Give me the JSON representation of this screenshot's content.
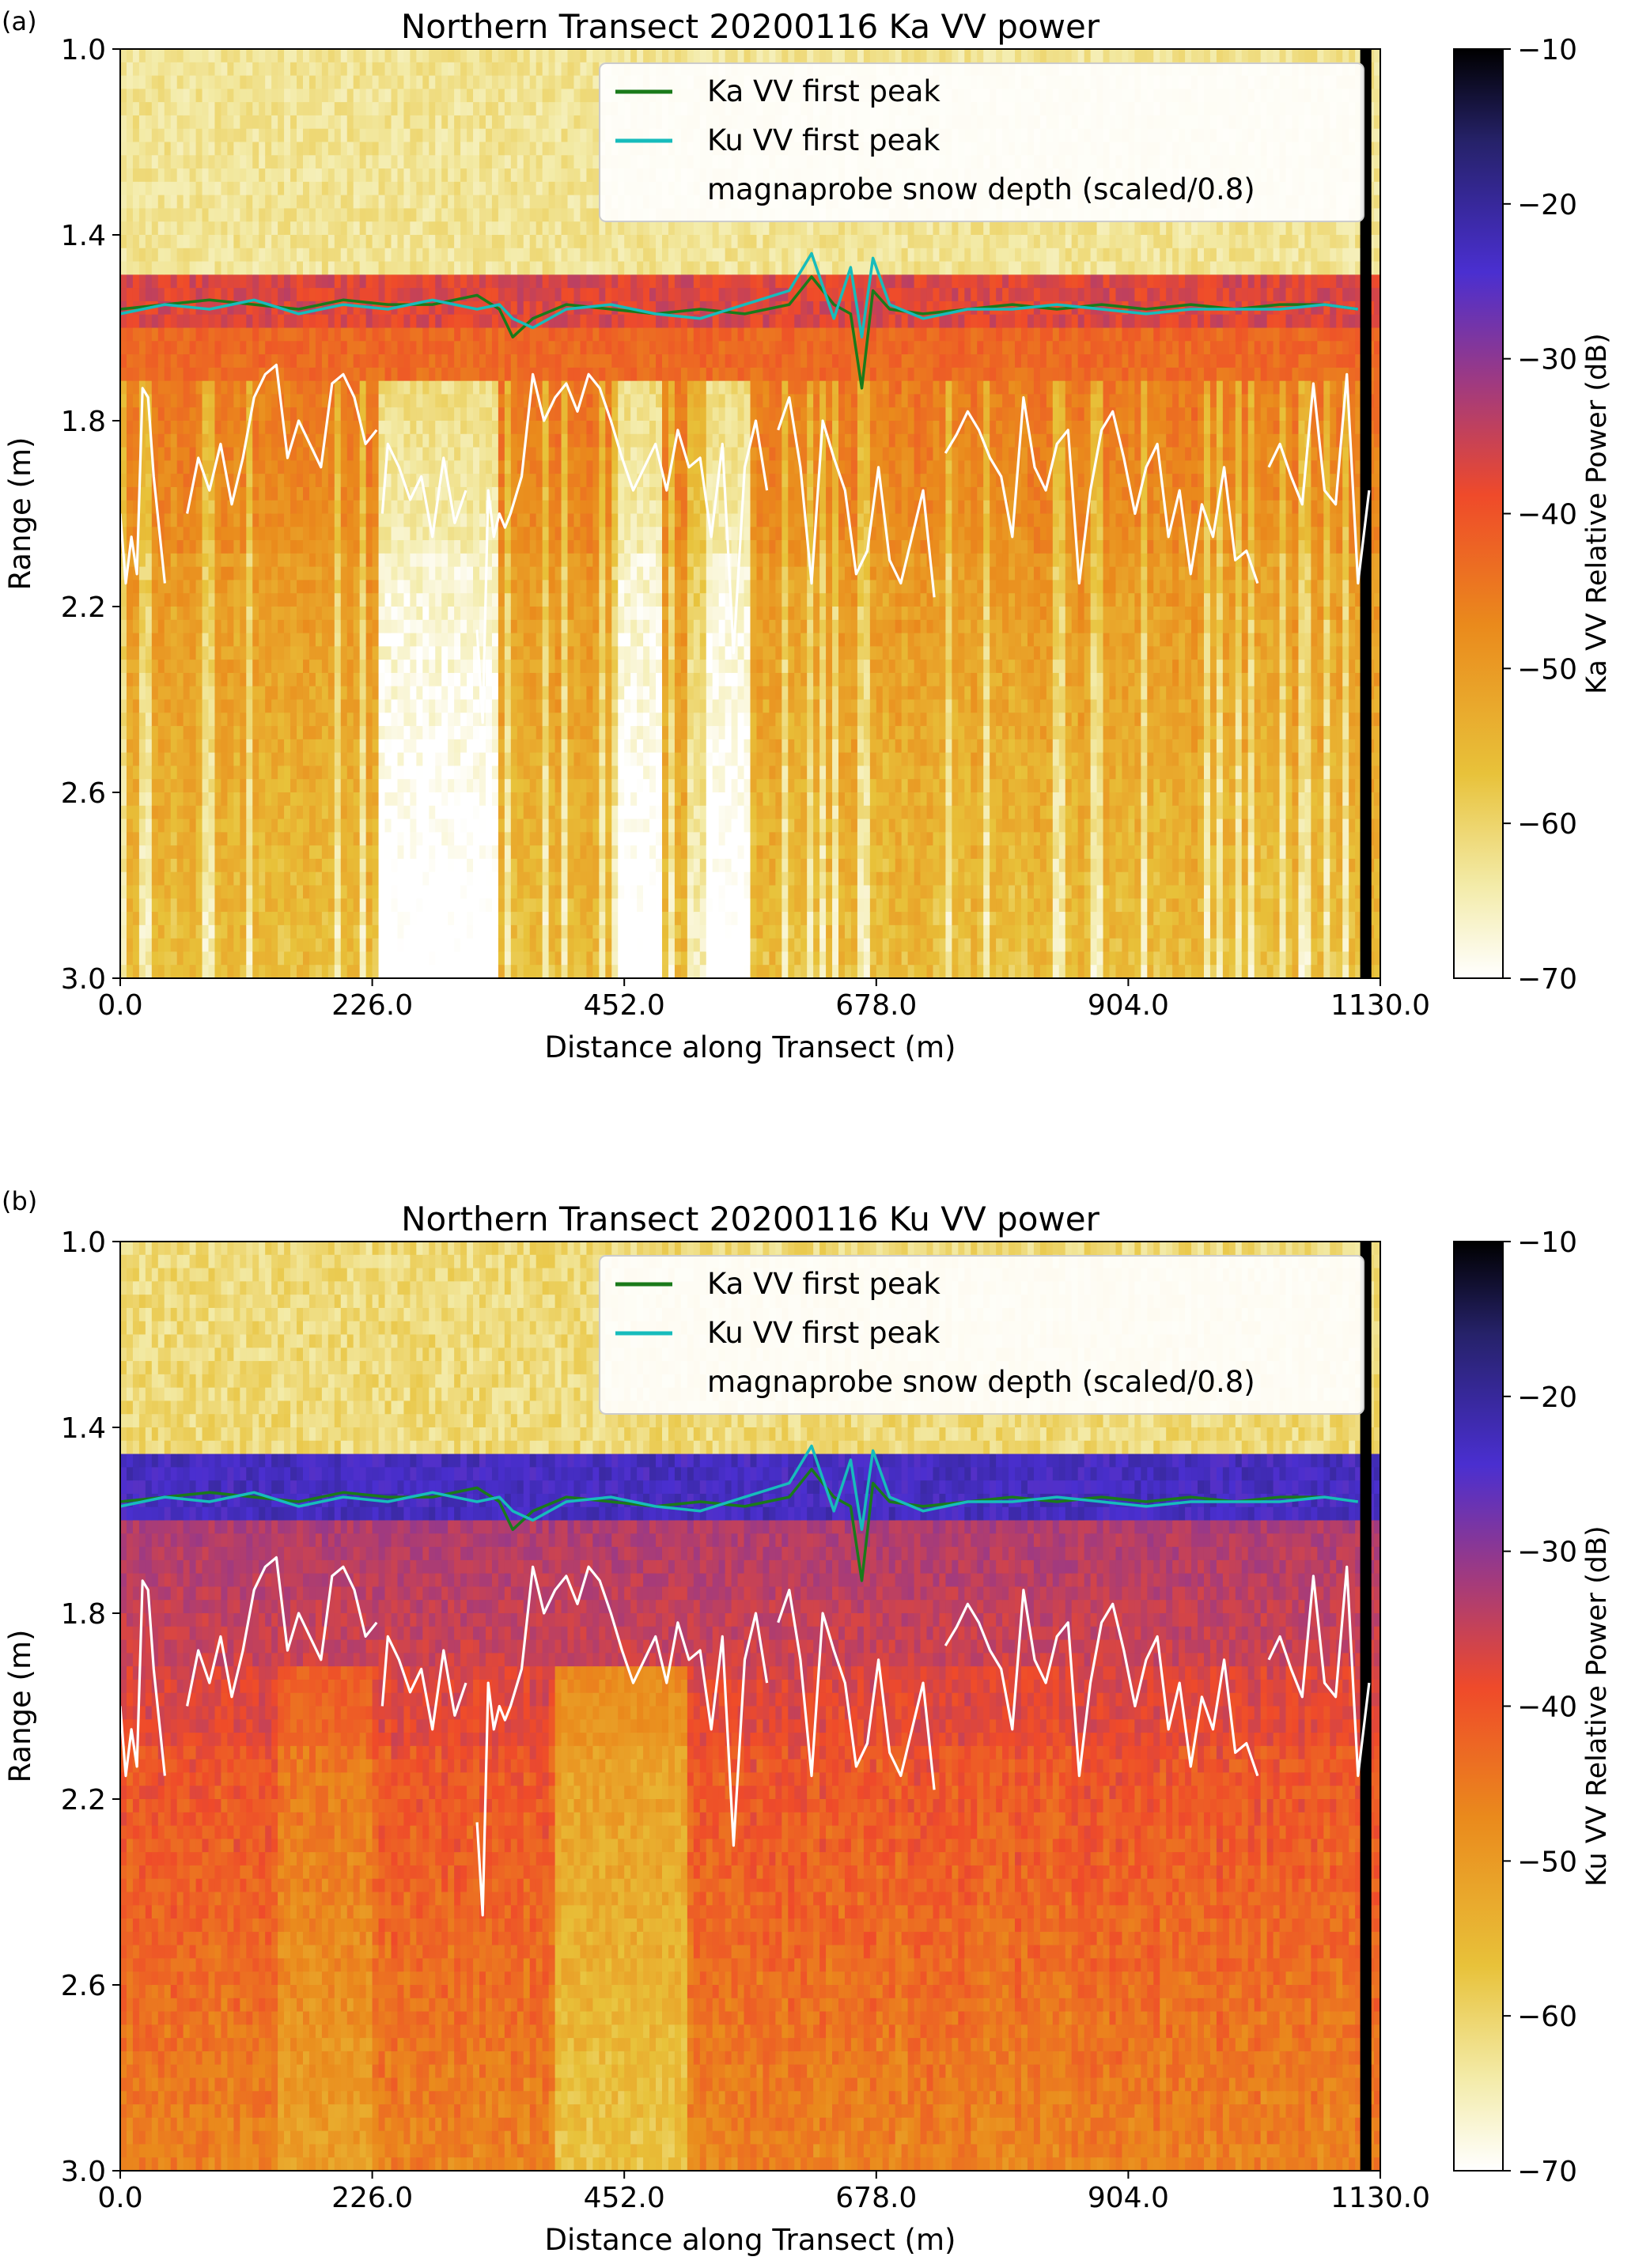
{
  "chart_data": [
    {
      "type": "heatmap",
      "panel_label": "(a)",
      "title": "Northern Transect 20200116 Ka VV power",
      "xlabel": "Distance along Transect (m)",
      "ylabel": "Range (m)",
      "xlim": [
        0,
        1130
      ],
      "ylim": [
        3.0,
        1.0
      ],
      "xticks": [
        "0.0",
        "226.0",
        "452.0",
        "678.0",
        "904.0",
        "1130.0"
      ],
      "yticks": [
        "1.0",
        "1.4",
        "1.8",
        "2.2",
        "2.6",
        "3.0"
      ],
      "colorbar": {
        "label": "Ka VV Relative Power (dB)",
        "range": [
          -70,
          -10
        ],
        "ticks": [
          "−10",
          "−20",
          "−30",
          "−40",
          "−50",
          "−60",
          "−70"
        ],
        "colormap": "CMRmap_r"
      },
      "legend_position": "top-right",
      "legend": [
        "Ka VV first peak",
        "Ku VV first peak",
        "magnaprobe snow depth (scaled/0.8)"
      ],
      "series": [
        {
          "name": "Ka VV first peak",
          "color": "#1a7a1a",
          "x": [
            0,
            40,
            80,
            120,
            160,
            200,
            240,
            280,
            320,
            340,
            352,
            370,
            400,
            440,
            480,
            520,
            560,
            600,
            620,
            640,
            655,
            665,
            675,
            690,
            720,
            760,
            800,
            840,
            880,
            920,
            960,
            1000,
            1040,
            1080,
            1110
          ],
          "y": [
            1.56,
            1.55,
            1.54,
            1.55,
            1.56,
            1.54,
            1.55,
            1.55,
            1.53,
            1.56,
            1.62,
            1.58,
            1.55,
            1.56,
            1.57,
            1.56,
            1.57,
            1.55,
            1.49,
            1.55,
            1.57,
            1.73,
            1.52,
            1.56,
            1.57,
            1.56,
            1.55,
            1.56,
            1.55,
            1.56,
            1.55,
            1.56,
            1.55,
            1.55,
            1.56
          ]
        },
        {
          "name": "Ku VV first peak",
          "color": "#17bcbc",
          "x": [
            0,
            40,
            80,
            120,
            160,
            200,
            240,
            280,
            320,
            340,
            352,
            370,
            400,
            440,
            480,
            520,
            560,
            600,
            620,
            640,
            655,
            665,
            675,
            690,
            720,
            760,
            800,
            840,
            880,
            920,
            960,
            1000,
            1040,
            1080,
            1110
          ],
          "y": [
            1.57,
            1.55,
            1.56,
            1.54,
            1.57,
            1.55,
            1.56,
            1.54,
            1.56,
            1.55,
            1.58,
            1.6,
            1.56,
            1.55,
            1.57,
            1.58,
            1.55,
            1.52,
            1.44,
            1.58,
            1.47,
            1.62,
            1.45,
            1.55,
            1.58,
            1.56,
            1.56,
            1.55,
            1.56,
            1.57,
            1.56,
            1.56,
            1.56,
            1.55,
            1.56
          ]
        },
        {
          "name": "magnaprobe snow depth (scaled/0.8)",
          "color": "#ffffff",
          "x": [
            0,
            5,
            10,
            15,
            20,
            25,
            30,
            40,
            50,
            60,
            70,
            80,
            90,
            100,
            110,
            120,
            130,
            140,
            150,
            160,
            170,
            180,
            190,
            200,
            210,
            220,
            230,
            null,
            235,
            240,
            250,
            260,
            270,
            280,
            290,
            300,
            310,
            null,
            320,
            325,
            330,
            335,
            340,
            345,
            350,
            360,
            370,
            380,
            390,
            400,
            410,
            420,
            430,
            440,
            450,
            460,
            470,
            480,
            490,
            500,
            510,
            520,
            530,
            540,
            550,
            560,
            570,
            580,
            null,
            590,
            600,
            610,
            620,
            630,
            640,
            650,
            660,
            670,
            680,
            690,
            700,
            710,
            720,
            730,
            null,
            740,
            750,
            760,
            770,
            780,
            790,
            800,
            810,
            820,
            830,
            840,
            850,
            860,
            870,
            880,
            890,
            900,
            910,
            920,
            930,
            940,
            950,
            960,
            970,
            980,
            990,
            1000,
            1010,
            1020,
            null,
            1030,
            1040,
            1050,
            1060,
            1070,
            1080,
            1090,
            1100,
            1110,
            1120
          ],
          "y": [
            2.0,
            2.15,
            2.05,
            2.13,
            1.73,
            1.75,
            1.92,
            2.15,
            null,
            2.0,
            1.88,
            1.95,
            1.85,
            1.98,
            1.88,
            1.75,
            1.7,
            1.68,
            1.88,
            1.8,
            1.85,
            1.9,
            1.72,
            1.7,
            1.75,
            1.85,
            1.82,
            null,
            2.0,
            1.85,
            1.9,
            1.97,
            1.92,
            2.05,
            1.88,
            2.02,
            1.95,
            null,
            2.25,
            2.45,
            1.95,
            2.05,
            2.0,
            2.03,
            2.0,
            1.92,
            1.7,
            1.8,
            1.75,
            1.72,
            1.78,
            1.7,
            1.73,
            1.8,
            1.88,
            1.95,
            1.9,
            1.85,
            1.95,
            1.82,
            1.9,
            1.88,
            2.05,
            1.85,
            2.3,
            1.9,
            1.8,
            1.95,
            null,
            1.82,
            1.75,
            1.9,
            2.15,
            1.8,
            1.88,
            1.95,
            2.13,
            2.08,
            1.9,
            2.1,
            2.15,
            2.05,
            1.95,
            2.18,
            null,
            1.87,
            1.83,
            1.78,
            1.82,
            1.88,
            1.92,
            2.05,
            1.75,
            1.9,
            1.95,
            1.85,
            1.82,
            2.15,
            1.95,
            1.82,
            1.78,
            1.88,
            2.0,
            1.9,
            1.85,
            2.05,
            1.95,
            2.13,
            1.98,
            2.05,
            1.9,
            2.1,
            2.08,
            2.15,
            null,
            1.9,
            1.85,
            1.92,
            1.98,
            1.72,
            1.95,
            1.98,
            1.7,
            2.15,
            1.95
          ]
        }
      ]
    },
    {
      "type": "heatmap",
      "panel_label": "(b)",
      "title": "Northern Transect 20200116 Ku VV power",
      "xlabel": "Distance along Transect (m)",
      "ylabel": "Range (m)",
      "xlim": [
        0,
        1130
      ],
      "ylim": [
        3.0,
        1.0
      ],
      "xticks": [
        "0.0",
        "226.0",
        "452.0",
        "678.0",
        "904.0",
        "1130.0"
      ],
      "yticks": [
        "1.0",
        "1.4",
        "1.8",
        "2.2",
        "2.6",
        "3.0"
      ],
      "colorbar": {
        "label": "Ku VV Relative Power (dB)",
        "range": [
          -70,
          -10
        ],
        "ticks": [
          "−10",
          "−20",
          "−30",
          "−40",
          "−50",
          "−60",
          "−70"
        ],
        "colormap": "CMRmap_r"
      },
      "legend_position": "top-right",
      "legend": [
        "Ka VV first peak",
        "Ku VV first peak",
        "magnaprobe snow depth (scaled/0.8)"
      ],
      "series": [
        {
          "name": "Ka VV first peak",
          "color": "#1a7a1a",
          "same_as_panel_a": true
        },
        {
          "name": "Ku VV first peak",
          "color": "#17bcbc",
          "same_as_panel_a": true
        },
        {
          "name": "magnaprobe snow depth (scaled/0.8)",
          "color": "#ffffff",
          "same_as_panel_a": true
        }
      ]
    }
  ]
}
